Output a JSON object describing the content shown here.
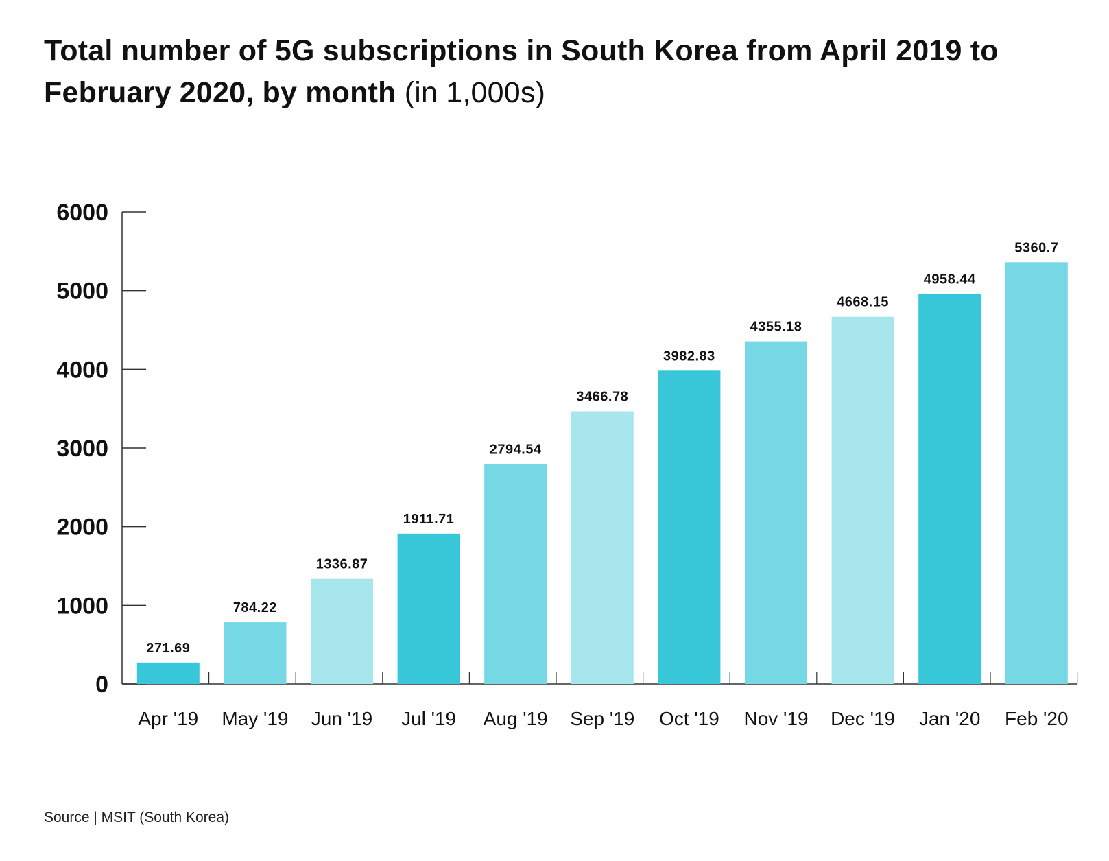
{
  "title": {
    "main": "Total number of 5G subscriptions in South Korea from April 2019 to February 2020, by month",
    "unit": "(in 1,000s)"
  },
  "source": "Source  |  MSIT (South Korea)",
  "colors": {
    "dark": "#38C6D9",
    "medium": "#75D8E4",
    "light": "#A8E6EE",
    "axis": "#333333"
  },
  "chart_data": {
    "type": "bar",
    "categories": [
      "Apr '19",
      "May '19",
      "Jun '19",
      "Jul '19",
      "Aug '19",
      "Sep '19",
      "Oct '19",
      "Nov '19",
      "Dec '19",
      "Jan '20",
      "Feb '20"
    ],
    "values": [
      271.69,
      784.22,
      1336.87,
      1911.71,
      2794.54,
      3466.78,
      3982.83,
      4355.18,
      4668.15,
      4958.44,
      5360.7
    ],
    "data_labels": [
      "271.69",
      "784.22",
      "1336.87",
      "1911.71",
      "2794.54",
      "3466.78",
      "3982.83",
      "4355.18",
      "4668.15",
      "4958.44",
      "5360.7"
    ],
    "bar_colors": [
      "dark",
      "medium",
      "light",
      "dark",
      "medium",
      "light",
      "dark",
      "medium",
      "light",
      "dark",
      "medium"
    ],
    "yticks": [
      0,
      1000,
      2000,
      3000,
      4000,
      5000,
      6000
    ],
    "ylim": [
      0,
      6000
    ],
    "xlabel": "",
    "ylabel": "",
    "grid": false,
    "legend": "none"
  }
}
